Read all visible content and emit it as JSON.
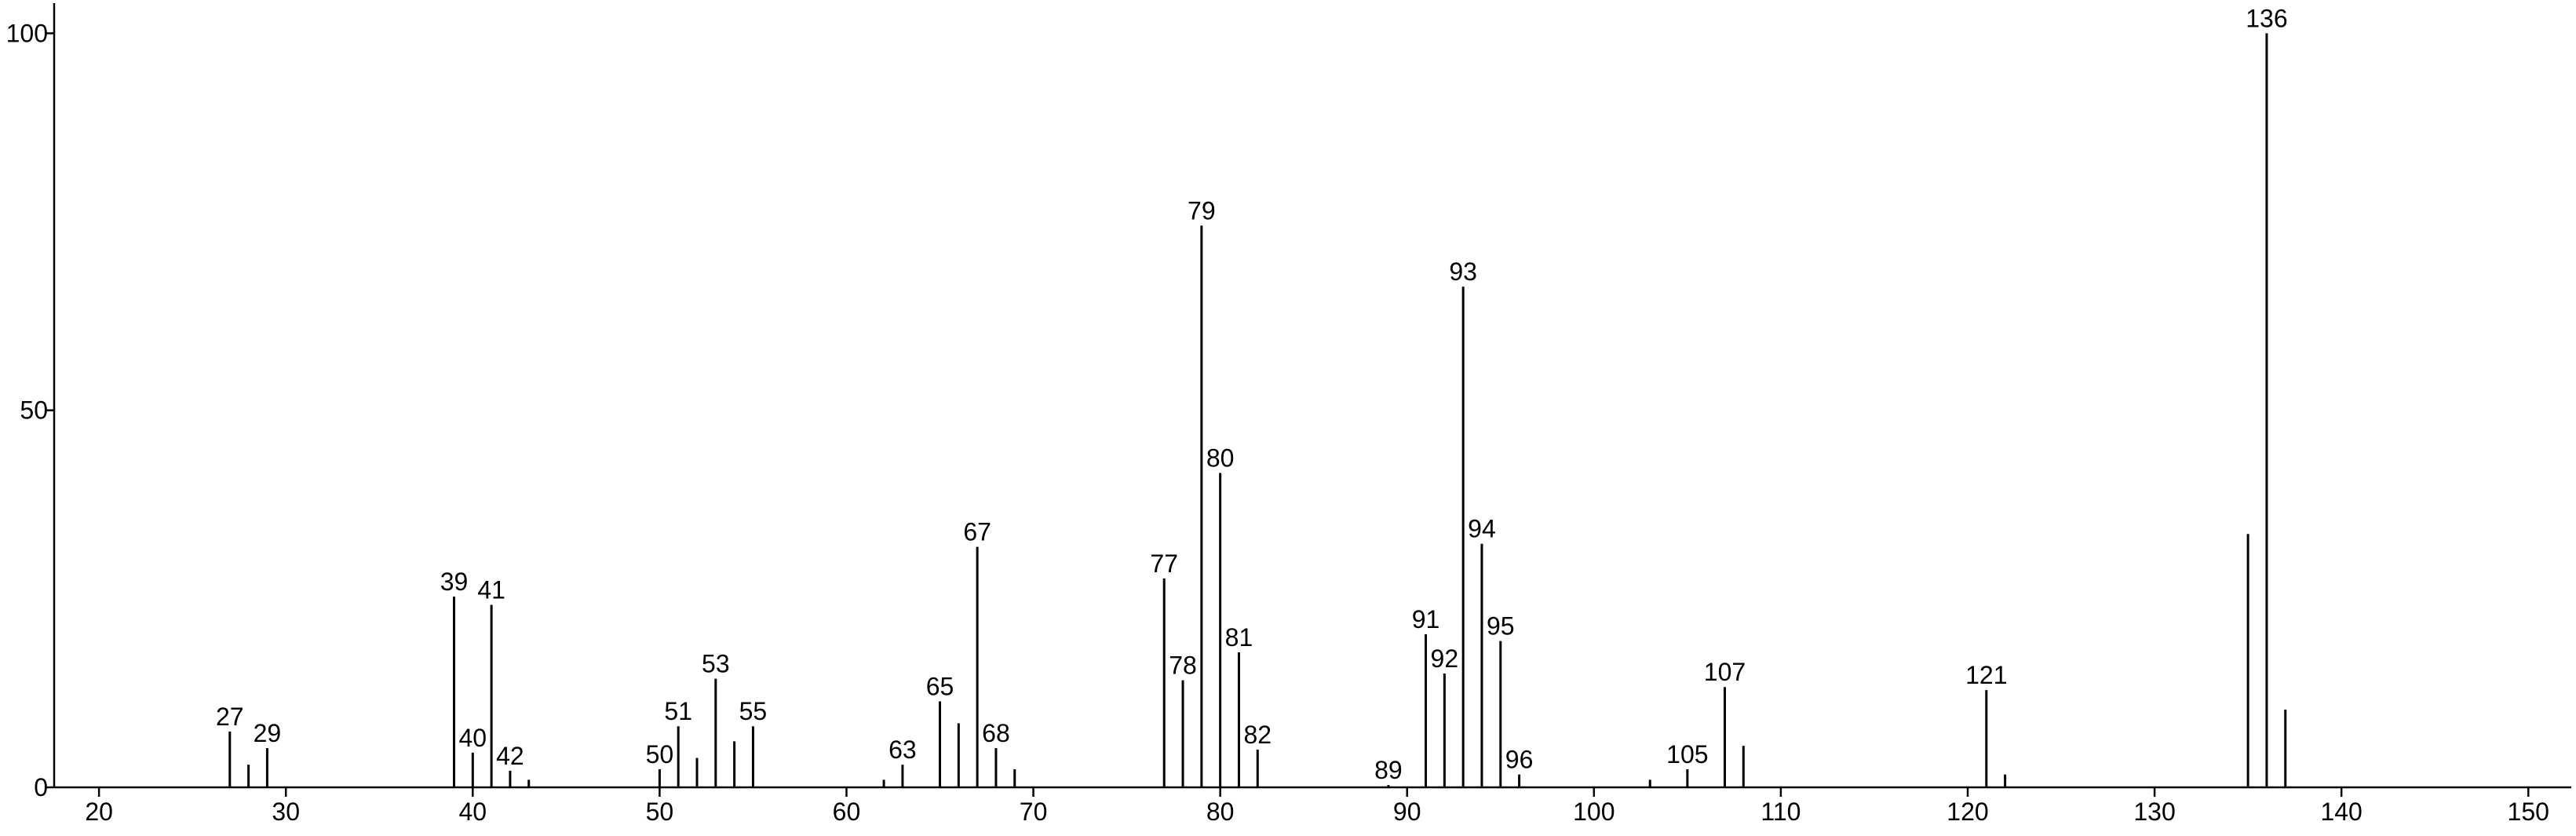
{
  "chart_data": {
    "type": "stem",
    "x": [
      27,
      28,
      29,
      39,
      40,
      41,
      42,
      43,
      50,
      51,
      52,
      53,
      54,
      55,
      62,
      63,
      65,
      66,
      67,
      68,
      69,
      77,
      78,
      79,
      80,
      81,
      82,
      89,
      91,
      92,
      93,
      94,
      95,
      96,
      103,
      105,
      107,
      108,
      121,
      122,
      135,
      136,
      137
    ],
    "values": [
      7.4,
      3,
      5.2,
      25.3,
      4.6,
      24.2,
      2.2,
      1,
      2.4,
      8.1,
      3.9,
      14.4,
      6.1,
      8.1,
      1,
      3,
      11.4,
      8.5,
      31.9,
      5.2,
      2.4,
      27.7,
      14.2,
      74.5,
      41.7,
      17.9,
      5,
      0.3,
      20.3,
      15.1,
      66.4,
      32.3,
      19.4,
      1.7,
      1,
      2.4,
      13.3,
      5.5,
      12.9,
      1.7,
      33.6,
      100,
      10.3
    ],
    "labels": [
      "27",
      null,
      "29",
      "39",
      "40",
      "41",
      "42",
      null,
      "50",
      "51",
      null,
      "53",
      null,
      "55",
      null,
      "63",
      "65",
      null,
      "67",
      "68",
      null,
      "77",
      "78",
      "79",
      "80",
      "81",
      "82",
      "89",
      "91",
      "92",
      "93",
      "94",
      "95",
      "96",
      null,
      "105",
      "107",
      null,
      "121",
      null,
      null,
      "136",
      null
    ],
    "color": "#000000",
    "xlim": [
      17.6,
      152.3
    ],
    "ylim": [
      0,
      104
    ],
    "xticks": [
      20,
      30,
      40,
      50,
      60,
      70,
      80,
      90,
      100,
      110,
      120,
      130,
      140,
      150
    ],
    "yticks": [
      0,
      50,
      100
    ]
  }
}
